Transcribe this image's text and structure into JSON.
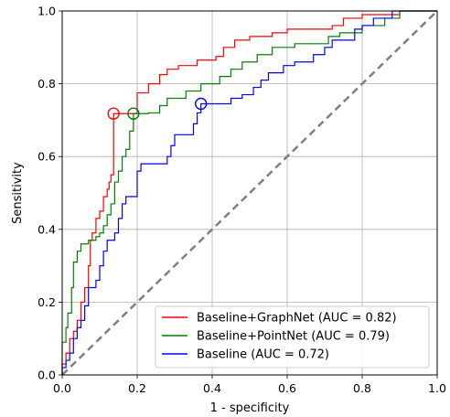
{
  "chart_data": {
    "type": "line",
    "title": "",
    "xlabel": "1 - specificity",
    "ylabel": "Sensitivity",
    "xlim": [
      0.0,
      1.0
    ],
    "ylim": [
      0.0,
      1.0
    ],
    "xticks": [
      "0.0",
      "0.2",
      "0.4",
      "0.6",
      "0.8",
      "1.0"
    ],
    "yticks": [
      "0.0",
      "0.2",
      "0.4",
      "0.6",
      "0.8",
      "1.0"
    ],
    "grid": true,
    "legend_position": "lower-right",
    "diagonal": {
      "x": [
        0,
        1
      ],
      "y": [
        0,
        1
      ],
      "color": "#808080",
      "style": "dashed"
    },
    "series": [
      {
        "name": "Baseline+GraphNet (AUC = 0.82)",
        "color": "#ff0000",
        "marker": {
          "x": 0.137,
          "y": 0.718
        },
        "points": [
          [
            0,
            0
          ],
          [
            0,
            0.03
          ],
          [
            0.01,
            0.03
          ],
          [
            0.01,
            0.06
          ],
          [
            0.02,
            0.06
          ],
          [
            0.02,
            0.1
          ],
          [
            0.03,
            0.1
          ],
          [
            0.03,
            0.12
          ],
          [
            0.04,
            0.12
          ],
          [
            0.04,
            0.15
          ],
          [
            0.05,
            0.15
          ],
          [
            0.05,
            0.2
          ],
          [
            0.06,
            0.2
          ],
          [
            0.06,
            0.24
          ],
          [
            0.07,
            0.24
          ],
          [
            0.07,
            0.3
          ],
          [
            0.075,
            0.3
          ],
          [
            0.075,
            0.37
          ],
          [
            0.08,
            0.37
          ],
          [
            0.08,
            0.39
          ],
          [
            0.09,
            0.39
          ],
          [
            0.09,
            0.43
          ],
          [
            0.1,
            0.43
          ],
          [
            0.1,
            0.45
          ],
          [
            0.11,
            0.45
          ],
          [
            0.11,
            0.49
          ],
          [
            0.12,
            0.49
          ],
          [
            0.12,
            0.51
          ],
          [
            0.125,
            0.51
          ],
          [
            0.125,
            0.53
          ],
          [
            0.13,
            0.53
          ],
          [
            0.13,
            0.55
          ],
          [
            0.137,
            0.55
          ],
          [
            0.137,
            0.718
          ],
          [
            0.2,
            0.718
          ],
          [
            0.2,
            0.775
          ],
          [
            0.23,
            0.775
          ],
          [
            0.23,
            0.8
          ],
          [
            0.26,
            0.8
          ],
          [
            0.26,
            0.825
          ],
          [
            0.28,
            0.825
          ],
          [
            0.28,
            0.84
          ],
          [
            0.31,
            0.84
          ],
          [
            0.31,
            0.85
          ],
          [
            0.36,
            0.85
          ],
          [
            0.36,
            0.865
          ],
          [
            0.41,
            0.865
          ],
          [
            0.41,
            0.875
          ],
          [
            0.43,
            0.875
          ],
          [
            0.43,
            0.9
          ],
          [
            0.46,
            0.9
          ],
          [
            0.46,
            0.92
          ],
          [
            0.5,
            0.92
          ],
          [
            0.5,
            0.93
          ],
          [
            0.56,
            0.93
          ],
          [
            0.56,
            0.94
          ],
          [
            0.6,
            0.94
          ],
          [
            0.6,
            0.95
          ],
          [
            0.72,
            0.95
          ],
          [
            0.72,
            0.96
          ],
          [
            0.75,
            0.96
          ],
          [
            0.75,
            0.98
          ],
          [
            0.8,
            0.98
          ],
          [
            0.8,
            0.99
          ],
          [
            0.9,
            0.99
          ],
          [
            0.9,
            1.0
          ],
          [
            1.0,
            1.0
          ]
        ]
      },
      {
        "name": "Baseline+PointNet (AUC = 0.79)",
        "color": "#008000",
        "marker": {
          "x": 0.19,
          "y": 0.718
        },
        "points": [
          [
            0,
            0
          ],
          [
            0,
            0.09
          ],
          [
            0.01,
            0.09
          ],
          [
            0.01,
            0.13
          ],
          [
            0.015,
            0.13
          ],
          [
            0.015,
            0.17
          ],
          [
            0.025,
            0.17
          ],
          [
            0.025,
            0.24
          ],
          [
            0.03,
            0.24
          ],
          [
            0.03,
            0.31
          ],
          [
            0.04,
            0.31
          ],
          [
            0.04,
            0.34
          ],
          [
            0.05,
            0.34
          ],
          [
            0.05,
            0.36
          ],
          [
            0.07,
            0.36
          ],
          [
            0.07,
            0.37
          ],
          [
            0.09,
            0.37
          ],
          [
            0.09,
            0.38
          ],
          [
            0.1,
            0.38
          ],
          [
            0.1,
            0.39
          ],
          [
            0.11,
            0.39
          ],
          [
            0.11,
            0.41
          ],
          [
            0.12,
            0.41
          ],
          [
            0.12,
            0.44
          ],
          [
            0.13,
            0.44
          ],
          [
            0.13,
            0.47
          ],
          [
            0.14,
            0.47
          ],
          [
            0.14,
            0.53
          ],
          [
            0.15,
            0.53
          ],
          [
            0.15,
            0.56
          ],
          [
            0.16,
            0.56
          ],
          [
            0.16,
            0.6
          ],
          [
            0.17,
            0.6
          ],
          [
            0.17,
            0.62
          ],
          [
            0.18,
            0.62
          ],
          [
            0.18,
            0.67
          ],
          [
            0.19,
            0.67
          ],
          [
            0.19,
            0.718
          ],
          [
            0.23,
            0.718
          ],
          [
            0.23,
            0.72
          ],
          [
            0.26,
            0.72
          ],
          [
            0.26,
            0.74
          ],
          [
            0.28,
            0.74
          ],
          [
            0.28,
            0.76
          ],
          [
            0.33,
            0.76
          ],
          [
            0.33,
            0.78
          ],
          [
            0.37,
            0.78
          ],
          [
            0.37,
            0.8
          ],
          [
            0.42,
            0.8
          ],
          [
            0.42,
            0.82
          ],
          [
            0.45,
            0.82
          ],
          [
            0.45,
            0.84
          ],
          [
            0.48,
            0.84
          ],
          [
            0.48,
            0.86
          ],
          [
            0.52,
            0.86
          ],
          [
            0.52,
            0.88
          ],
          [
            0.56,
            0.88
          ],
          [
            0.56,
            0.9
          ],
          [
            0.62,
            0.9
          ],
          [
            0.62,
            0.91
          ],
          [
            0.71,
            0.91
          ],
          [
            0.71,
            0.93
          ],
          [
            0.74,
            0.93
          ],
          [
            0.74,
            0.94
          ],
          [
            0.8,
            0.94
          ],
          [
            0.8,
            0.96
          ],
          [
            0.86,
            0.96
          ],
          [
            0.86,
            0.98
          ],
          [
            0.9,
            0.98
          ],
          [
            0.9,
            1.0
          ],
          [
            1.0,
            1.0
          ]
        ]
      },
      {
        "name": "Baseline (AUC = 0.72)",
        "color": "#0000ff",
        "marker": {
          "x": 0.37,
          "y": 0.745
        },
        "points": [
          [
            0,
            0
          ],
          [
            0,
            0.02
          ],
          [
            0.01,
            0.02
          ],
          [
            0.01,
            0.04
          ],
          [
            0.02,
            0.04
          ],
          [
            0.02,
            0.06
          ],
          [
            0.03,
            0.06
          ],
          [
            0.03,
            0.1
          ],
          [
            0.04,
            0.1
          ],
          [
            0.04,
            0.13
          ],
          [
            0.05,
            0.13
          ],
          [
            0.05,
            0.15
          ],
          [
            0.06,
            0.15
          ],
          [
            0.06,
            0.19
          ],
          [
            0.07,
            0.19
          ],
          [
            0.07,
            0.24
          ],
          [
            0.09,
            0.24
          ],
          [
            0.09,
            0.26
          ],
          [
            0.1,
            0.26
          ],
          [
            0.1,
            0.3
          ],
          [
            0.11,
            0.3
          ],
          [
            0.11,
            0.34
          ],
          [
            0.12,
            0.34
          ],
          [
            0.12,
            0.37
          ],
          [
            0.14,
            0.37
          ],
          [
            0.14,
            0.39
          ],
          [
            0.15,
            0.39
          ],
          [
            0.15,
            0.43
          ],
          [
            0.16,
            0.43
          ],
          [
            0.16,
            0.47
          ],
          [
            0.17,
            0.47
          ],
          [
            0.17,
            0.49
          ],
          [
            0.2,
            0.49
          ],
          [
            0.2,
            0.56
          ],
          [
            0.21,
            0.56
          ],
          [
            0.21,
            0.58
          ],
          [
            0.28,
            0.58
          ],
          [
            0.28,
            0.6
          ],
          [
            0.29,
            0.6
          ],
          [
            0.29,
            0.63
          ],
          [
            0.3,
            0.63
          ],
          [
            0.3,
            0.66
          ],
          [
            0.35,
            0.66
          ],
          [
            0.35,
            0.69
          ],
          [
            0.36,
            0.69
          ],
          [
            0.36,
            0.72
          ],
          [
            0.37,
            0.72
          ],
          [
            0.37,
            0.745
          ],
          [
            0.45,
            0.745
          ],
          [
            0.45,
            0.76
          ],
          [
            0.48,
            0.76
          ],
          [
            0.48,
            0.77
          ],
          [
            0.51,
            0.77
          ],
          [
            0.51,
            0.79
          ],
          [
            0.53,
            0.79
          ],
          [
            0.53,
            0.81
          ],
          [
            0.55,
            0.81
          ],
          [
            0.55,
            0.83
          ],
          [
            0.59,
            0.83
          ],
          [
            0.59,
            0.85
          ],
          [
            0.62,
            0.85
          ],
          [
            0.62,
            0.86
          ],
          [
            0.67,
            0.86
          ],
          [
            0.67,
            0.88
          ],
          [
            0.7,
            0.88
          ],
          [
            0.7,
            0.9
          ],
          [
            0.72,
            0.9
          ],
          [
            0.72,
            0.92
          ],
          [
            0.78,
            0.92
          ],
          [
            0.78,
            0.95
          ],
          [
            0.8,
            0.95
          ],
          [
            0.8,
            0.96
          ],
          [
            0.83,
            0.96
          ],
          [
            0.83,
            0.98
          ],
          [
            0.88,
            0.98
          ],
          [
            0.88,
            1.0
          ],
          [
            1.0,
            1.0
          ]
        ]
      }
    ]
  }
}
